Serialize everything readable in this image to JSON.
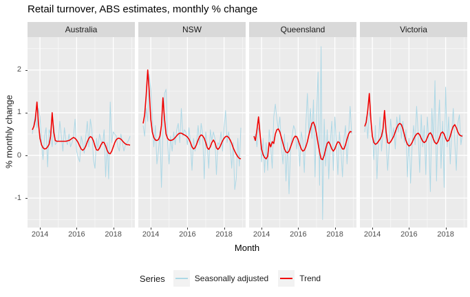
{
  "title": "Retail turnover, ABS estimates, monthly % change",
  "colors": {
    "seasonally_adjusted": "#add8e6",
    "trend": "#f00000",
    "panel_background": "#ebebeb",
    "strip_background": "#d9d9d9",
    "legend_key_background": "#f2f2f2",
    "gridline": "#ffffff",
    "tick_mark": "#333333",
    "tick_label": "#4d4d4d",
    "text": "#1a1a1a"
  },
  "axes": {
    "y_label": "% monthly change",
    "x_label": "Month",
    "y_ticks": [
      {
        "label": "2",
        "value": 2
      },
      {
        "label": "1",
        "value": 1
      },
      {
        "label": "0",
        "value": 0
      },
      {
        "label": "-1",
        "value": -1
      }
    ],
    "y_minor": [
      2.5,
      1.5,
      0.5,
      -0.5,
      -1.5
    ],
    "x_ticks": [
      {
        "label": "2014",
        "index": 5
      },
      {
        "label": "2016",
        "index": 29
      },
      {
        "label": "2018",
        "index": 53
      }
    ],
    "x_minor_indices": [
      17,
      41,
      65
    ]
  },
  "legend": {
    "title": "Series",
    "entries": [
      {
        "label": "Seasonally adjusted",
        "color_key": "seasonally_adjusted"
      },
      {
        "label": "Trend",
        "color_key": "trend"
      }
    ]
  },
  "chart_data": {
    "type": "line",
    "title": "Retail turnover, ABS estimates, monthly % change",
    "xlabel": "Month",
    "ylabel": "% monthly change",
    "x_start": "2013-08",
    "x_end": "2018-12",
    "x_frequency": "monthly",
    "n_points": 65,
    "ylim": [
      -1.69,
      2.77
    ],
    "grid": true,
    "legend_position": "bottom",
    "facets": [
      {
        "name": "Australia",
        "series": [
          {
            "name": "Seasonally adjusted",
            "values": [
              0.5,
              0.75,
              0.95,
              0.65,
              1.1,
              0.9,
              0.35,
              -0.1,
              0.45,
              0.65,
              -0.27,
              0.6,
              0.5,
              0.2,
              0.7,
              0.25,
              0.3,
              0.35,
              0.8,
              0.45,
              0.1,
              0.65,
              0.35,
              0.25,
              0.5,
              0.2,
              0.3,
              0.45,
              0.85,
              0.1,
              -0.05,
              -0.15,
              0.45,
              0.3,
              0.05,
              0.45,
              0.8,
              0.2,
              0.85,
              0.6,
              -0.1,
              -0.3,
              0.4,
              0.15,
              0.5,
              0.35,
              0.25,
              0.6,
              -0.5,
              0.3,
              -0.55,
              1.25,
              0.3,
              0.55,
              0.5,
              0.45,
              0.2,
              0.1,
              0.5,
              0.3,
              0.1,
              0.25,
              0.3,
              0.35,
              0.45
            ]
          },
          {
            "name": "Trend",
            "values": [
              0.6,
              0.68,
              0.85,
              1.25,
              0.75,
              0.4,
              0.25,
              0.18,
              0.15,
              0.16,
              0.2,
              0.26,
              0.45,
              1.0,
              0.55,
              0.35,
              0.33,
              0.33,
              0.33,
              0.33,
              0.33,
              0.33,
              0.33,
              0.34,
              0.35,
              0.37,
              0.4,
              0.42,
              0.4,
              0.36,
              0.3,
              0.22,
              0.15,
              0.12,
              0.15,
              0.22,
              0.32,
              0.4,
              0.44,
              0.42,
              0.34,
              0.22,
              0.13,
              0.12,
              0.17,
              0.25,
              0.31,
              0.3,
              0.22,
              0.12,
              0.05,
              0.04,
              0.1,
              0.2,
              0.3,
              0.37,
              0.4,
              0.4,
              0.38,
              0.34,
              0.3,
              0.27,
              0.25,
              0.25,
              0.24
            ]
          }
        ]
      },
      {
        "name": "NSW",
        "series": [
          {
            "name": "Seasonally adjusted",
            "values": [
              0.7,
              0.45,
              1.1,
              0.8,
              1.9,
              1.55,
              0.9,
              0.2,
              0.7,
              -0.2,
              0.1,
              0.55,
              -0.75,
              0.6,
              1.45,
              1.55,
              0.3,
              -0.2,
              0.45,
              0.1,
              0.55,
              0.25,
              0.6,
              0.75,
              0.3,
              1.1,
              0.45,
              0.6,
              0.55,
              0.25,
              0.65,
              0.3,
              -0.35,
              0.4,
              0.1,
              0.3,
              0.7,
              0.25,
              0.75,
              0.5,
              -0.55,
              0.55,
              0.2,
              -0.3,
              0.6,
              0.35,
              0.55,
              0.4,
              -0.45,
              0.3,
              0.25,
              0.55,
              0.1,
              0.65,
              1.05,
              0.3,
              0.55,
              0.25,
              -0.3,
              0.3,
              -0.8,
              -0.55,
              0.4,
              -0.25,
              0.65
            ]
          },
          {
            "name": "Trend",
            "values": [
              0.75,
              0.95,
              1.4,
              2.0,
              1.5,
              0.85,
              0.55,
              0.42,
              0.36,
              0.35,
              0.37,
              0.45,
              0.7,
              1.35,
              0.85,
              0.5,
              0.4,
              0.36,
              0.35,
              0.36,
              0.38,
              0.42,
              0.46,
              0.5,
              0.52,
              0.52,
              0.5,
              0.48,
              0.46,
              0.43,
              0.38,
              0.3,
              0.2,
              0.15,
              0.18,
              0.26,
              0.36,
              0.44,
              0.48,
              0.46,
              0.4,
              0.3,
              0.18,
              0.14,
              0.2,
              0.3,
              0.36,
              0.3,
              0.18,
              0.14,
              0.18,
              0.26,
              0.34,
              0.4,
              0.44,
              0.45,
              0.42,
              0.36,
              0.28,
              0.18,
              0.1,
              0.03,
              -0.03,
              -0.07,
              -0.08
            ]
          }
        ]
      },
      {
        "name": "Queensland",
        "series": [
          {
            "name": "Seasonally adjusted",
            "values": [
              0.35,
              0.5,
              0.2,
              0.65,
              0.5,
              -0.15,
              0.4,
              -0.4,
              0.3,
              -0.35,
              0.6,
              0.2,
              -0.3,
              0.9,
              1.2,
              0.85,
              0.6,
              0.9,
              0.2,
              -0.2,
              0.5,
              -0.6,
              0.3,
              -0.9,
              0.2,
              0.45,
              0.7,
              0.6,
              0.15,
              0.4,
              -0.25,
              0.55,
              0.35,
              -0.4,
              0.7,
              1.45,
              0.5,
              1.1,
              0.4,
              1.3,
              -0.5,
              0.95,
              1.95,
              -0.7,
              2.55,
              -1.5,
              0.85,
              -0.25,
              0.6,
              -0.55,
              0.3,
              0.8,
              -0.35,
              0.9,
              0.3,
              -0.45,
              0.55,
              0.1,
              -0.5,
              0.4,
              0.7,
              -0.2,
              0.5,
              1.15,
              0.5
            ]
          },
          {
            "name": "Trend",
            "values": [
              0.45,
              0.35,
              0.6,
              0.9,
              0.5,
              0.15,
              0.02,
              -0.05,
              -0.08,
              -0.02,
              0.3,
              0.2,
              0.32,
              0.28,
              0.5,
              0.6,
              0.62,
              0.55,
              0.42,
              0.28,
              0.15,
              0.08,
              0.06,
              0.1,
              0.2,
              0.3,
              0.4,
              0.45,
              0.44,
              0.36,
              0.25,
              0.15,
              0.1,
              0.12,
              0.2,
              0.32,
              0.48,
              0.62,
              0.75,
              0.78,
              0.68,
              0.5,
              0.28,
              0.08,
              -0.08,
              -0.1,
              0.0,
              0.15,
              0.28,
              0.32,
              0.25,
              0.15,
              0.1,
              0.15,
              0.25,
              0.32,
              0.3,
              0.22,
              0.15,
              0.15,
              0.25,
              0.38,
              0.5,
              0.56,
              0.55
            ]
          }
        ]
      },
      {
        "name": "Victoria",
        "series": [
          {
            "name": "Seasonally adjusted",
            "values": [
              0.55,
              0.9,
              0.4,
              1.0,
              0.85,
              0.5,
              -0.1,
              0.7,
              -0.55,
              0.35,
              0.9,
              0.1,
              0.55,
              1.0,
              0.35,
              -0.35,
              0.2,
              0.85,
              0.4,
              0.65,
              0.15,
              0.9,
              0.55,
              0.95,
              0.4,
              0.8,
              0.3,
              0.6,
              -0.5,
              0.4,
              -0.65,
              0.2,
              0.7,
              0.25,
              1.15,
              0.5,
              -0.4,
              0.95,
              0.2,
              0.7,
              -0.45,
              0.9,
              0.35,
              -0.85,
              1.1,
              0.3,
              1.75,
              -0.6,
              0.65,
              1.3,
              -0.3,
              0.8,
              -0.75,
              1.6,
              0.2,
              0.9,
              -0.2,
              0.55,
              1.1,
              0.3,
              -0.35,
              0.75,
              0.95,
              0.25,
              0.5
            ]
          },
          {
            "name": "Trend",
            "values": [
              0.68,
              0.78,
              1.05,
              1.45,
              0.85,
              0.45,
              0.3,
              0.26,
              0.28,
              0.33,
              0.38,
              0.45,
              0.62,
              1.05,
              0.55,
              0.3,
              0.28,
              0.32,
              0.38,
              0.45,
              0.55,
              0.65,
              0.72,
              0.75,
              0.72,
              0.62,
              0.48,
              0.35,
              0.26,
              0.22,
              0.24,
              0.3,
              0.38,
              0.45,
              0.5,
              0.52,
              0.48,
              0.4,
              0.33,
              0.3,
              0.33,
              0.42,
              0.5,
              0.53,
              0.48,
              0.38,
              0.3,
              0.27,
              0.32,
              0.42,
              0.52,
              0.55,
              0.5,
              0.4,
              0.33,
              0.35,
              0.45,
              0.58,
              0.68,
              0.72,
              0.65,
              0.55,
              0.48,
              0.46,
              0.45
            ]
          }
        ]
      }
    ]
  }
}
